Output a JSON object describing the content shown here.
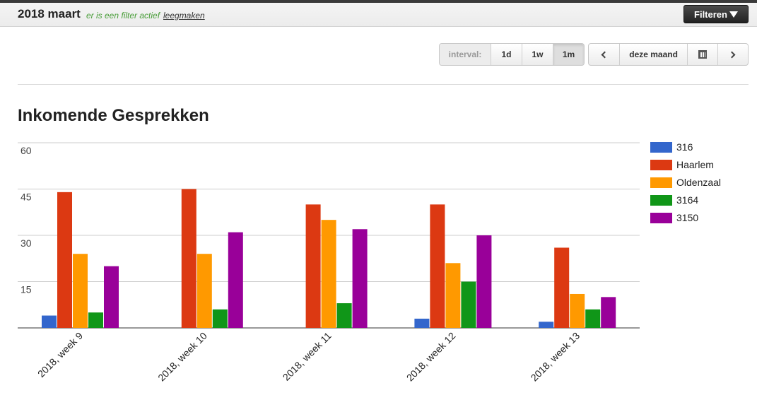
{
  "header": {
    "period": "2018 maart",
    "filter_note": "er is een filter actief",
    "clear_link": "leegmaken",
    "filter_button": "Filteren"
  },
  "interval": {
    "label": "interval:",
    "options": [
      "1d",
      "1w",
      "1m"
    ],
    "active": "1m"
  },
  "navigation": {
    "current": "deze maand",
    "prev_icon": "chevron-left-icon",
    "next_icon": "chevron-right-icon",
    "calendar_icon": "calendar-icon"
  },
  "chart_data": {
    "type": "bar",
    "title": "Inkomende Gesprekken",
    "xlabel": "",
    "ylabel": "",
    "ylim": [
      0,
      60
    ],
    "yticks": [
      15,
      30,
      45,
      60
    ],
    "grid": true,
    "legend": "right",
    "categories": [
      "2018, week 9",
      "2018, week 10",
      "2018, week 11",
      "2018, week 12",
      "2018, week 13"
    ],
    "series": [
      {
        "name": "316",
        "color": "#3366cc",
        "values": [
          4,
          0,
          0,
          3,
          2
        ]
      },
      {
        "name": "Haarlem",
        "color": "#dc3912",
        "values": [
          44,
          45,
          40,
          40,
          26
        ]
      },
      {
        "name": "Oldenzaal",
        "color": "#ff9900",
        "values": [
          24,
          24,
          35,
          21,
          11
        ]
      },
      {
        "name": "3164",
        "color": "#109618",
        "values": [
          5,
          6,
          8,
          15,
          6
        ]
      },
      {
        "name": "3150",
        "color": "#990099",
        "values": [
          20,
          31,
          32,
          30,
          10
        ]
      }
    ]
  }
}
